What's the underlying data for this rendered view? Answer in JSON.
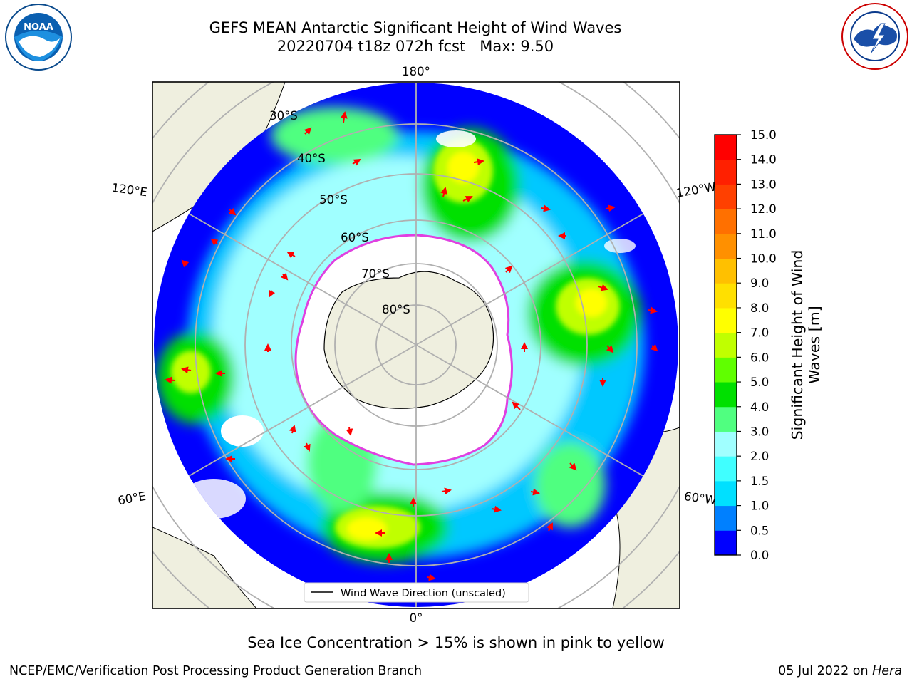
{
  "title": {
    "line1": "GEFS MEAN Antarctic Significant Height of Wind Waves",
    "line2": "20220704 t18z 072h fcst   Max: 9.50"
  },
  "caption": "Sea Ice Concentration > 15% is shown in pink to yellow",
  "footer": {
    "left": "NCEP/EMC/Verification Post Processing Product Generation Branch",
    "right_date": "05 Jul 2022 on",
    "right_host": "Hera"
  },
  "logos": {
    "left": "NOAA",
    "right": "NATIONAL WEATHER SERVICE"
  },
  "map": {
    "projection": "south-polar-stereographic",
    "longitude_labels": [
      "180°",
      "120°E",
      "120°W",
      "60°E",
      "60°W",
      "0°"
    ],
    "latitude_labels": [
      "30°S",
      "40°S",
      "50°S",
      "60°S",
      "70°S",
      "80°S"
    ],
    "legend_label": "Wind Wave Direction (unscaled)"
  },
  "colorbar": {
    "label": "Significant Height of Wind Waves [m]",
    "ticks": [
      "0.0",
      "0.5",
      "1.0",
      "1.5",
      "2.0",
      "3.0",
      "4.0",
      "5.0",
      "6.0",
      "7.0",
      "8.0",
      "9.0",
      "10.0",
      "11.0",
      "12.0",
      "13.0",
      "14.0",
      "15.0"
    ],
    "colors": [
      "#0000ff",
      "#0080ff",
      "#00e0ff",
      "#40ffff",
      "#a0ffff",
      "#50ff80",
      "#00e000",
      "#60ff00",
      "#c0ff00",
      "#ffff00",
      "#ffe000",
      "#ffc000",
      "#ff9000",
      "#ff7000",
      "#ff4000",
      "#ff2000",
      "#ff0000"
    ]
  }
}
